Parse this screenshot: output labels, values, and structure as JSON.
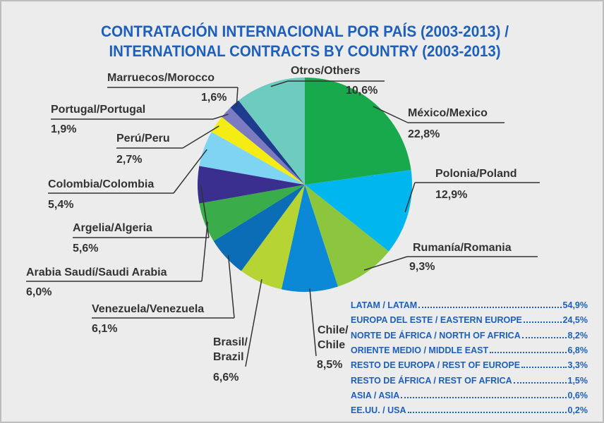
{
  "chart_data": {
    "type": "pie",
    "title": "CONTRATACIÓN INTERNACIONAL POR PAÍS (2003-2013) /",
    "subtitle": "INTERNATIONAL CONTRACTS BY COUNTRY (2003-2013)",
    "categories": [
      "México/Mexico",
      "Polonia/Poland",
      "Rumanía/Romania",
      "Chile/\nChile",
      "Brasil/\nBrazil",
      "Venezuela/Venezuela",
      "Arabia Saudí/Saudi Arabia",
      "Argelia/Algeria",
      "Colombia/Colombia",
      "Perú/Peru",
      "Portugal/Portugal",
      "Marruecos/Morocco",
      "Otros/Others"
    ],
    "values": [
      22.8,
      12.9,
      9.3,
      8.5,
      6.6,
      6.1,
      6.0,
      5.6,
      5.4,
      2.7,
      1.9,
      1.6,
      10.6
    ],
    "value_labels": [
      "22,8%",
      "12,9%",
      "9,3%",
      "8,5%",
      "6,6%",
      "6,1%",
      "6,0%",
      "5,6%",
      "5,4%",
      "2,7%",
      "1,9%",
      "1,6%",
      "10,6%"
    ],
    "colors": [
      "#17a94b",
      "#00b6ef",
      "#8cc63f",
      "#0b88d6",
      "#b6d433",
      "#0a6db5",
      "#3aad4a",
      "#3a2e8e",
      "#7fd3f3",
      "#f5ec16",
      "#7c7ac1",
      "#1e3b8d",
      "#6ecbc0"
    ],
    "summary": {
      "names": [
        "LATAM / LATAM",
        "EUROPA DEL ESTE / EASTERN EUROPE",
        "NORTE DE ÁFRICA / NORTH OF AFRICA",
        "ORIENTE MEDIO / MIDDLE EAST",
        "RESTO DE EUROPA / REST OF EUROPE",
        "RESTO DE ÁFRICA / REST OF AFRICA",
        "ASIA / ASIA",
        "EE.UU. / USA"
      ],
      "value_labels": [
        "54,9%",
        "24,5%",
        "8,2%",
        "6,8%",
        "3,3%",
        "1,5%",
        "0,6%",
        "0,2%"
      ]
    }
  }
}
